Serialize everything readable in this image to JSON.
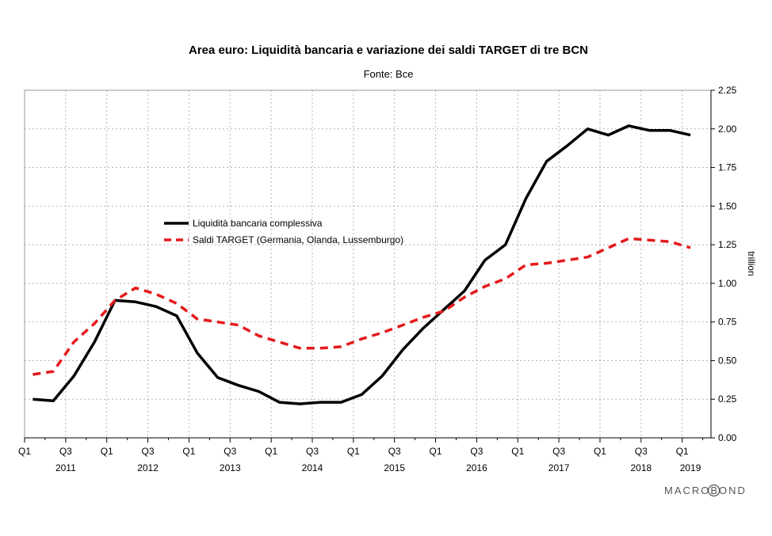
{
  "chart_data": {
    "type": "line",
    "title": "Area euro: Liquidità bancaria e variazione dei saldi TARGET di tre BCN",
    "subtitle": "Fonte: Bce",
    "ylabel": "trillion",
    "ylim": [
      0,
      2.25
    ],
    "yticks": [
      "0.00",
      "0.25",
      "0.50",
      "0.75",
      "1.00",
      "1.25",
      "1.50",
      "1.75",
      "2.00",
      "2.25"
    ],
    "xlim": [
      2011.0,
      2019.35
    ],
    "x_quarter_ticks": [
      {
        "x": 2011.0,
        "label": "Q1"
      },
      {
        "x": 2011.5,
        "label": "Q3"
      },
      {
        "x": 2012.0,
        "label": "Q1"
      },
      {
        "x": 2012.5,
        "label": "Q3"
      },
      {
        "x": 2013.0,
        "label": "Q1"
      },
      {
        "x": 2013.5,
        "label": "Q3"
      },
      {
        "x": 2014.0,
        "label": "Q1"
      },
      {
        "x": 2014.5,
        "label": "Q3"
      },
      {
        "x": 2015.0,
        "label": "Q1"
      },
      {
        "x": 2015.5,
        "label": "Q3"
      },
      {
        "x": 2016.0,
        "label": "Q1"
      },
      {
        "x": 2016.5,
        "label": "Q3"
      },
      {
        "x": 2017.0,
        "label": "Q1"
      },
      {
        "x": 2017.5,
        "label": "Q3"
      },
      {
        "x": 2018.0,
        "label": "Q1"
      },
      {
        "x": 2018.5,
        "label": "Q3"
      },
      {
        "x": 2019.0,
        "label": "Q1"
      }
    ],
    "x_year_labels": [
      {
        "x": 2011.5,
        "label": "2011"
      },
      {
        "x": 2012.5,
        "label": "2012"
      },
      {
        "x": 2013.5,
        "label": "2013"
      },
      {
        "x": 2014.5,
        "label": "2014"
      },
      {
        "x": 2015.5,
        "label": "2015"
      },
      {
        "x": 2016.5,
        "label": "2016"
      },
      {
        "x": 2017.5,
        "label": "2017"
      },
      {
        "x": 2018.5,
        "label": "2018"
      },
      {
        "x": 2019.1,
        "label": "2019"
      }
    ],
    "grid": true,
    "legend": "center-left",
    "series": [
      {
        "name": "Liquidità bancaria complessiva",
        "color": "#000000",
        "dash": "solid",
        "points": [
          [
            2011.1,
            0.25
          ],
          [
            2011.35,
            0.24
          ],
          [
            2011.6,
            0.4
          ],
          [
            2011.85,
            0.62
          ],
          [
            2012.1,
            0.89
          ],
          [
            2012.35,
            0.88
          ],
          [
            2012.6,
            0.85
          ],
          [
            2012.85,
            0.79
          ],
          [
            2013.1,
            0.55
          ],
          [
            2013.35,
            0.39
          ],
          [
            2013.6,
            0.34
          ],
          [
            2013.85,
            0.3
          ],
          [
            2014.1,
            0.23
          ],
          [
            2014.35,
            0.22
          ],
          [
            2014.6,
            0.23
          ],
          [
            2014.85,
            0.23
          ],
          [
            2015.1,
            0.28
          ],
          [
            2015.35,
            0.4
          ],
          [
            2015.6,
            0.57
          ],
          [
            2015.85,
            0.71
          ],
          [
            2016.1,
            0.83
          ],
          [
            2016.35,
            0.95
          ],
          [
            2016.6,
            1.15
          ],
          [
            2016.85,
            1.25
          ],
          [
            2017.1,
            1.55
          ],
          [
            2017.35,
            1.79
          ],
          [
            2017.6,
            1.89
          ],
          [
            2017.85,
            2.0
          ],
          [
            2018.1,
            1.96
          ],
          [
            2018.35,
            2.02
          ],
          [
            2018.6,
            1.99
          ],
          [
            2018.85,
            1.99
          ],
          [
            2019.1,
            1.96
          ]
        ]
      },
      {
        "name": "Saldi TARGET (Germania, Olanda, Lussemburgo)",
        "color": "#e41a1c",
        "dash": "dashed",
        "points": [
          [
            2011.1,
            0.41
          ],
          [
            2011.35,
            0.43
          ],
          [
            2011.6,
            0.62
          ],
          [
            2011.85,
            0.74
          ],
          [
            2012.1,
            0.89
          ],
          [
            2012.35,
            0.97
          ],
          [
            2012.6,
            0.93
          ],
          [
            2012.85,
            0.87
          ],
          [
            2013.1,
            0.77
          ],
          [
            2013.35,
            0.75
          ],
          [
            2013.6,
            0.73
          ],
          [
            2013.85,
            0.66
          ],
          [
            2014.1,
            0.62
          ],
          [
            2014.35,
            0.58
          ],
          [
            2014.6,
            0.58
          ],
          [
            2014.85,
            0.59
          ],
          [
            2015.1,
            0.64
          ],
          [
            2015.35,
            0.68
          ],
          [
            2015.6,
            0.73
          ],
          [
            2015.85,
            0.78
          ],
          [
            2016.1,
            0.82
          ],
          [
            2016.35,
            0.91
          ],
          [
            2016.6,
            0.98
          ],
          [
            2016.85,
            1.03
          ],
          [
            2017.1,
            1.12
          ],
          [
            2017.35,
            1.13
          ],
          [
            2017.6,
            1.15
          ],
          [
            2017.85,
            1.17
          ],
          [
            2018.1,
            1.23
          ],
          [
            2018.35,
            1.29
          ],
          [
            2018.6,
            1.28
          ],
          [
            2018.85,
            1.27
          ],
          [
            2019.1,
            1.23
          ]
        ]
      }
    ]
  },
  "branding": {
    "logo_text": "MACROBOND"
  }
}
